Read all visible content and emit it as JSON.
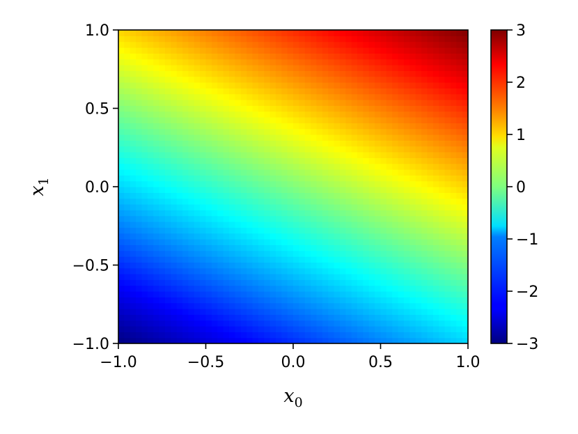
{
  "chart_data": {
    "type": "heatmap",
    "title": "",
    "xlabel": "x",
    "xlabel_subscript": "0",
    "ylabel": "x",
    "ylabel_subscript": "1",
    "xlim": [
      -1.0,
      1.0
    ],
    "ylim": [
      -1.0,
      1.0
    ],
    "x_ticks": [
      -1.0,
      -0.5,
      0.0,
      0.5,
      1.0
    ],
    "x_tick_labels": [
      "−1.0",
      "−0.5",
      "0.0",
      "0.5",
      "1.0"
    ],
    "y_ticks": [
      -1.0,
      -0.5,
      0.0,
      0.5,
      1.0
    ],
    "y_tick_labels": [
      "−1.0",
      "−0.5",
      "0.0",
      "0.5",
      "1.0"
    ],
    "field": {
      "expression": "x0 + 2 * x1",
      "description": "value increases toward upper-right"
    },
    "grid": false,
    "colormap": "jet",
    "colorbar": {
      "range": [
        -3,
        3
      ],
      "ticks": [
        -3,
        -2,
        -1,
        0,
        1,
        2,
        3
      ],
      "tick_labels": [
        "−3",
        "−2",
        "−1",
        "0",
        "1",
        "2",
        "3"
      ]
    }
  }
}
